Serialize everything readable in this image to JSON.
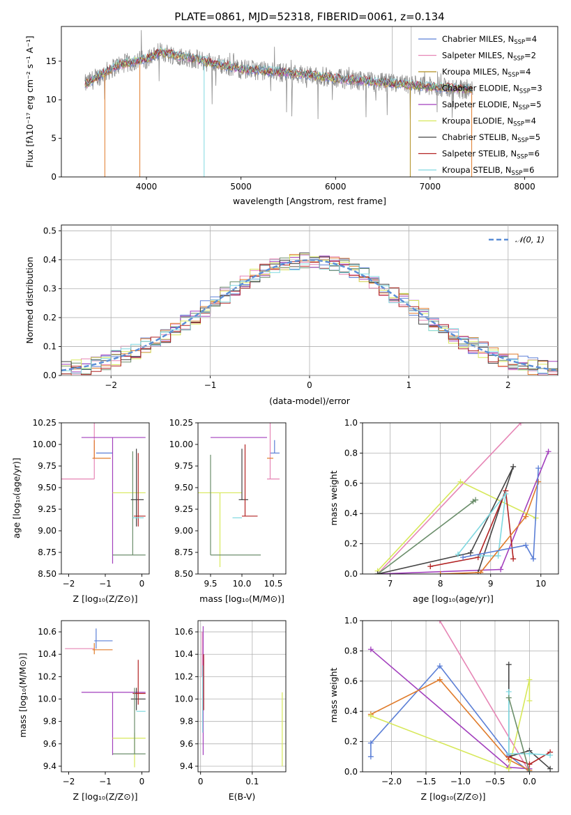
{
  "chart_data": [
    {
      "id": "spectrum",
      "type": "line",
      "title": "PLATE=0861, MJD=52318, FIBERID=0061, z=0.134",
      "xlabel": "wavelength [Angstrom, rest frame]",
      "ylabel": "Flux [fλ10⁻¹⁷ erg cm⁻² s⁻¹ A⁻¹]",
      "xlim": [
        3100,
        8350
      ],
      "ylim": [
        0,
        19.5
      ],
      "xticks": [
        4000,
        5000,
        6000,
        7000,
        8000
      ],
      "yticks": [
        0,
        5,
        10,
        15
      ],
      "grid": false,
      "legend_position": "top-right",
      "data_range": [
        3350,
        7450
      ],
      "continuum": [
        [
          3350,
          12
        ],
        [
          3700,
          14.5
        ],
        [
          4000,
          15.3
        ],
        [
          4150,
          16.2
        ],
        [
          4500,
          15.3
        ],
        [
          5000,
          14
        ],
        [
          5500,
          13.5
        ],
        [
          6000,
          12.8
        ],
        [
          6500,
          12.2
        ],
        [
          7000,
          11.7
        ],
        [
          7450,
          11.3
        ]
      ],
      "series": [
        {
          "name": "Chabrier MILES, N_SSP=4",
          "color": "#5b7fd6"
        },
        {
          "name": "Salpeter MILES, N_SSP=2",
          "color": "#e685b5"
        },
        {
          "name": "Kroupa MILES, N_SSP=4",
          "color": "#b08d1f"
        },
        {
          "name": "Chabrier ELODIE, N_SSP=3",
          "color": "#6b8e6b"
        },
        {
          "name": "Salpeter ELODIE, N_SSP=5",
          "color": "#a23fbd"
        },
        {
          "name": "Kroupa ELODIE, N_SSP=4",
          "color": "#d7e85a"
        },
        {
          "name": "Chabrier STELIB, N_SSP=5",
          "color": "#444444"
        },
        {
          "name": "Salpeter STELIB, N_SSP=6",
          "color": "#b22222"
        },
        {
          "name": "Kroupa STELIB, N_SSP=6",
          "color": "#7fd8e0"
        }
      ]
    },
    {
      "id": "residuals",
      "type": "line",
      "xlabel": "(data-model)/error",
      "ylabel": "Normed distribution",
      "xlim": [
        -2.5,
        2.5
      ],
      "ylim": [
        0,
        0.52
      ],
      "xticks": [
        -2,
        -1,
        0,
        1,
        2
      ],
      "yticks": [
        0.0,
        0.1,
        0.2,
        0.3,
        0.4,
        0.5
      ],
      "grid": true,
      "legend_position": "top-right",
      "reference": {
        "label": "𝒩(0, 1)",
        "color": "#5b8ed6",
        "mean": 0,
        "sigma": 1
      },
      "histogram_colors": [
        "#5b7fd6",
        "#e685b5",
        "#e07b2a",
        "#6b8e6b",
        "#a23fbd",
        "#d7e85a",
        "#444444",
        "#b22222",
        "#7fd8e0"
      ],
      "bin_width": 0.1
    },
    {
      "id": "age_vs_Z",
      "type": "scatter",
      "xlabel": "Z [log₁₀(Z/Z⊙)]",
      "ylabel": "age  [log₁₀(age/yr)]",
      "xlim": [
        -2.2,
        0.2
      ],
      "ylim": [
        8.5,
        10.25
      ],
      "xticks": [
        -2,
        -1,
        0
      ],
      "yticks": [
        8.5,
        8.75,
        9.0,
        9.25,
        9.5,
        9.75,
        10.0,
        10.25
      ],
      "grid": false,
      "crosses": [
        {
          "color": "#e685b5",
          "x": [
            -2.3,
            -1.3
          ],
          "y": [
            9.6,
            10.25
          ],
          "cx": -1.3,
          "cy": 9.6
        },
        {
          "color": "#e07b2a",
          "x": [
            -1.35,
            -0.85
          ],
          "y": [
            9.84,
            10.05
          ],
          "cx": -1.3,
          "cy": 9.84
        },
        {
          "color": "#5b7fd6",
          "x": [
            -1.25,
            -0.8
          ],
          "y": [
            9.9,
            9.9
          ],
          "cx": -1.25,
          "cy": 9.9
        },
        {
          "color": "#a23fbd",
          "x": [
            -1.65,
            0.1
          ],
          "y": [
            8.62,
            10.08
          ],
          "cx": -0.8,
          "cy": 10.08
        },
        {
          "color": "#d7e85a",
          "x": [
            -0.8,
            0.1
          ],
          "y": [
            9.44,
            9.44
          ],
          "cx": -0.3,
          "cy": 9.44
        },
        {
          "color": "#6b8e6b",
          "x": [
            -0.8,
            0.1
          ],
          "y": [
            8.72,
            9.92
          ],
          "cx": -0.25,
          "cy": 8.72
        },
        {
          "color": "#444444",
          "x": [
            -0.3,
            0.05
          ],
          "y": [
            9.05,
            9.95
          ],
          "cx": -0.15,
          "cy": 9.36
        },
        {
          "color": "#b22222",
          "x": [
            -0.22,
            0.1
          ],
          "y": [
            9.05,
            9.9
          ],
          "cx": -0.1,
          "cy": 9.17
        },
        {
          "color": "#7fd8e0",
          "x": [
            -0.25,
            0.05
          ],
          "y": [
            9.15,
            9.15
          ],
          "cx": -0.1,
          "cy": 9.15
        }
      ]
    },
    {
      "id": "age_vs_mass",
      "type": "scatter",
      "xlabel": "mass [log₁₀(M/M⊙)]",
      "ylabel": "",
      "xlim": [
        9.3,
        10.7
      ],
      "ylim": [
        8.5,
        10.25
      ],
      "xticks": [
        9.5,
        10.0,
        10.5
      ],
      "yticks": [
        8.5,
        8.75,
        9.0,
        9.25,
        9.5,
        9.75,
        10.0,
        10.25
      ],
      "grid": false,
      "crosses": [
        {
          "color": "#a23fbd",
          "x": [
            9.5,
            10.4
          ],
          "y": [
            10.08,
            10.08
          ],
          "cx": 10.05,
          "cy": 10.08
        },
        {
          "color": "#5b7fd6",
          "x": [
            10.45,
            10.6
          ],
          "y": [
            9.9,
            10.05
          ],
          "cx": 10.52,
          "cy": 9.9
        },
        {
          "color": "#e685b5",
          "x": [
            10.4,
            10.6
          ],
          "y": [
            9.6,
            10.25
          ],
          "cx": 10.45,
          "cy": 9.6
        },
        {
          "color": "#e07b2a",
          "x": [
            10.4,
            10.5
          ],
          "y": [
            9.84,
            9.84
          ],
          "cx": 10.45,
          "cy": 9.84
        },
        {
          "color": "#d7e85a",
          "x": [
            9.3,
            10.0
          ],
          "y": [
            8.58,
            9.44
          ],
          "cx": 9.65,
          "cy": 9.44
        },
        {
          "color": "#6b8e6b",
          "x": [
            9.5,
            10.3
          ],
          "y": [
            8.72,
            9.88
          ],
          "cx": 9.5,
          "cy": 8.72
        },
        {
          "color": "#444444",
          "x": [
            9.95,
            10.1
          ],
          "y": [
            9.36,
            9.95
          ],
          "cx": 10.0,
          "cy": 9.36
        },
        {
          "color": "#b22222",
          "x": [
            10.0,
            10.25
          ],
          "y": [
            9.17,
            10.0
          ],
          "cx": 10.05,
          "cy": 9.17
        },
        {
          "color": "#7fd8e0",
          "x": [
            9.85,
            10.0
          ],
          "y": [
            9.15,
            9.15
          ],
          "cx": 9.9,
          "cy": 9.15
        }
      ]
    },
    {
      "id": "weight_vs_age",
      "type": "line",
      "xlabel": "age  [log₁₀(age/yr)]",
      "ylabel": "mass weight",
      "xlim": [
        6.45,
        10.35
      ],
      "ylim": [
        0,
        1.0
      ],
      "xticks": [
        7,
        8,
        9,
        10
      ],
      "yticks": [
        0.0,
        0.2,
        0.4,
        0.6,
        0.8,
        1.0
      ],
      "grid": true,
      "series": [
        {
          "color": "#e685b5",
          "points": [
            [
              6.75,
              0.0
            ],
            [
              9.6,
              1.0
            ]
          ]
        },
        {
          "color": "#a23fbd",
          "points": [
            [
              6.75,
              0.0
            ],
            [
              9.2,
              0.03
            ],
            [
              10.15,
              0.81
            ]
          ]
        },
        {
          "color": "#d7e85a",
          "points": [
            [
              6.75,
              0.02
            ],
            [
              8.4,
              0.61
            ],
            [
              9.9,
              0.37
            ]
          ]
        },
        {
          "color": "#6b8e6b",
          "points": [
            [
              6.75,
              0.0
            ],
            [
              8.7,
              0.49
            ],
            [
              8.65,
              0.48
            ]
          ]
        },
        {
          "color": "#444444",
          "points": [
            [
              6.75,
              0.0
            ],
            [
              8.6,
              0.14
            ],
            [
              9.45,
              0.71
            ],
            [
              8.75,
              0.01
            ]
          ]
        },
        {
          "color": "#b22222",
          "points": [
            [
              7.8,
              0.05
            ],
            [
              8.75,
              0.11
            ],
            [
              9.3,
              0.55
            ],
            [
              9.45,
              0.1
            ]
          ]
        },
        {
          "color": "#7fd8e0",
          "points": [
            [
              8.35,
              0.13
            ],
            [
              9.3,
              0.53
            ],
            [
              9.15,
              0.12
            ],
            [
              8.8,
              0.12
            ]
          ]
        },
        {
          "color": "#e07b2a",
          "points": [
            [
              8.0,
              0.0
            ],
            [
              8.8,
              0.01
            ],
            [
              9.7,
              0.38
            ],
            [
              9.95,
              0.61
            ]
          ]
        },
        {
          "color": "#5b7fd6",
          "points": [
            [
              8.45,
              0.11
            ],
            [
              9.7,
              0.19
            ],
            [
              9.85,
              0.1
            ],
            [
              9.95,
              0.7
            ]
          ]
        }
      ]
    },
    {
      "id": "mass_vs_Z",
      "type": "scatter",
      "xlabel": "Z [log₁₀(Z/Z⊙)]",
      "ylabel": "mass [log₁₀(M/M⊙)]",
      "xlim": [
        -2.2,
        0.2
      ],
      "ylim": [
        9.35,
        10.7
      ],
      "xticks": [
        -2,
        -1,
        0
      ],
      "yticks": [
        9.4,
        9.6,
        9.8,
        10.0,
        10.2,
        10.4,
        10.6
      ],
      "grid": false,
      "crosses": [
        {
          "color": "#e685b5",
          "x": [
            -2.1,
            -1.3
          ],
          "y": [
            10.45,
            10.45
          ],
          "cx": -1.3,
          "cy": 10.45
        },
        {
          "color": "#5b7fd6",
          "x": [
            -1.3,
            -0.8
          ],
          "y": [
            10.45,
            10.63
          ],
          "cx": -1.25,
          "cy": 10.52
        },
        {
          "color": "#e07b2a",
          "x": [
            -1.35,
            -0.8
          ],
          "y": [
            10.4,
            10.5
          ],
          "cx": -1.3,
          "cy": 10.44
        },
        {
          "color": "#a23fbd",
          "x": [
            -1.65,
            0.1
          ],
          "y": [
            9.5,
            10.06
          ],
          "cx": -0.8,
          "cy": 10.06
        },
        {
          "color": "#444444",
          "x": [
            -0.3,
            0.1
          ],
          "y": [
            9.9,
            10.1
          ],
          "cx": -0.15,
          "cy": 10.0
        },
        {
          "color": "#b22222",
          "x": [
            -0.25,
            0.1
          ],
          "y": [
            9.95,
            10.35
          ],
          "cx": -0.1,
          "cy": 10.05
        },
        {
          "color": "#7fd8e0",
          "x": [
            -0.15,
            0.1
          ],
          "y": [
            9.89,
            9.89
          ],
          "cx": 0.0,
          "cy": 9.89
        },
        {
          "color": "#d7e85a",
          "x": [
            -0.8,
            0.1
          ],
          "y": [
            9.39,
            9.7
          ],
          "cx": -0.2,
          "cy": 9.65
        },
        {
          "color": "#6b8e6b",
          "x": [
            -0.8,
            0.1
          ],
          "y": [
            9.51,
            10.1
          ],
          "cx": -0.2,
          "cy": 9.51
        }
      ]
    },
    {
      "id": "mass_vs_ebv",
      "type": "scatter",
      "xlabel": "E(B-V)",
      "ylabel": "",
      "xlim": [
        -0.005,
        0.165
      ],
      "ylim": [
        9.35,
        10.7
      ],
      "xticks": [
        0.0,
        0.1
      ],
      "yticks": [
        9.4,
        9.6,
        9.8,
        10.0,
        10.2,
        10.4,
        10.6
      ],
      "grid": true,
      "segments": [
        {
          "color": "#a23fbd",
          "x": 0.005,
          "y": [
            9.5,
            10.65
          ]
        },
        {
          "color": "#e685b5",
          "x": 0.003,
          "y": [
            10.2,
            10.6
          ]
        },
        {
          "color": "#b22222",
          "x": 0.006,
          "y": [
            9.9,
            10.4
          ]
        },
        {
          "color": "#7fd8e0",
          "x": 0.004,
          "y": [
            9.7,
            10.3
          ]
        },
        {
          "color": "#d7e85a",
          "x": 0.158,
          "y": [
            9.4,
            10.06
          ]
        }
      ]
    },
    {
      "id": "weight_vs_Z",
      "type": "line",
      "xlabel": "Z [log₁₀(Z/Z⊙)]",
      "ylabel": "mass weight",
      "xlim": [
        -2.42,
        0.42
      ],
      "ylim": [
        0,
        1.0
      ],
      "xticks": [
        -2.0,
        -1.5,
        -1.0,
        -0.5,
        0.0
      ],
      "yticks": [
        0.0,
        0.2,
        0.4,
        0.6,
        0.8,
        1.0
      ],
      "grid": true,
      "series": [
        {
          "color": "#e685b5",
          "points": [
            [
              -1.3,
              1.0
            ],
            [
              0.0,
              0.0
            ]
          ]
        },
        {
          "color": "#a23fbd",
          "points": [
            [
              -2.3,
              0.81
            ],
            [
              -0.3,
              0.03
            ],
            [
              0.0,
              0.02
            ]
          ]
        },
        {
          "color": "#5b7fd6",
          "points": [
            [
              -2.3,
              0.1
            ],
            [
              -2.3,
              0.19
            ],
            [
              -1.3,
              0.7
            ],
            [
              -0.3,
              0.11
            ],
            [
              0.0,
              0.0
            ]
          ]
        },
        {
          "color": "#e07b2a",
          "points": [
            [
              -2.3,
              0.38
            ],
            [
              -1.3,
              0.61
            ],
            [
              -0.3,
              0.08
            ],
            [
              0.0,
              0.01
            ]
          ]
        },
        {
          "color": "#d7e85a",
          "points": [
            [
              -2.3,
              0.37
            ],
            [
              -0.3,
              0.02
            ],
            [
              0.0,
              0.61
            ],
            [
              0.0,
              0.47
            ]
          ]
        },
        {
          "color": "#444444",
          "points": [
            [
              -0.3,
              0.71
            ],
            [
              -0.3,
              0.1
            ],
            [
              0.0,
              0.14
            ],
            [
              0.3,
              0.02
            ]
          ]
        },
        {
          "color": "#b22222",
          "points": [
            [
              -0.3,
              0.1
            ],
            [
              0.0,
              0.05
            ],
            [
              0.3,
              0.13
            ]
          ]
        },
        {
          "color": "#7fd8e0",
          "points": [
            [
              -0.3,
              0.53
            ],
            [
              -0.3,
              0.12
            ],
            [
              0.0,
              0.12
            ],
            [
              0.3,
              0.11
            ]
          ]
        },
        {
          "color": "#6b8e6b",
          "points": [
            [
              -0.3,
              0.49
            ],
            [
              0.0,
              0.0
            ]
          ]
        }
      ]
    }
  ]
}
